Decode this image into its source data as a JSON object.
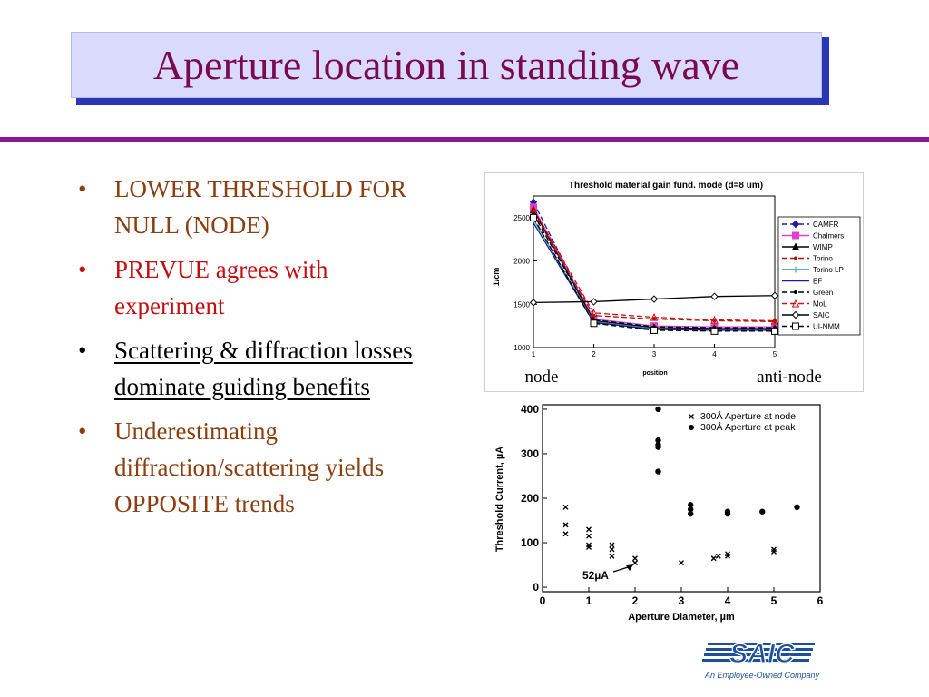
{
  "slide": {
    "title": "Aperture location in standing wave",
    "bullets": [
      {
        "text": "LOWER THRESHOLD FOR NULL (NODE)",
        "color": "#8b3f10"
      },
      {
        "text": "PREVUE agrees with experiment",
        "color": "#c40f12"
      },
      {
        "text": "Scattering & diffraction losses dominate guiding benefits",
        "color": "#000000",
        "underline": true
      },
      {
        "text": "Underestimating diffraction/scattering yields OPPOSITE trends",
        "color": "#8b3f10"
      }
    ],
    "bullet_glyph": "•",
    "logo": {
      "name": "SAIC",
      "tagline": "An Employee-Owned Company",
      "color": "#1d4f9f"
    }
  },
  "chart_data": [
    {
      "type": "line",
      "title": "Threshold material gain fund. mode (d=8 um)",
      "xlabel": "position",
      "ylabel": "1/cm",
      "xlim": [
        1,
        5
      ],
      "ylim": [
        1000,
        2750
      ],
      "xticks": [
        1,
        2,
        3,
        4,
        5
      ],
      "yticks": [
        1000,
        1500,
        2000,
        2500
      ],
      "x": [
        1,
        2,
        3,
        4,
        5
      ],
      "annotations": [
        "node",
        "anti-node"
      ],
      "legend_position": "right",
      "series": [
        {
          "name": "CAMFR",
          "values": [
            2680,
            1310,
            1230,
            1220,
            1220
          ],
          "color": "#1a1aa6",
          "dash": "6,3",
          "marker": "diamond-filled"
        },
        {
          "name": "Chalmers",
          "values": [
            2620,
            1330,
            1250,
            1240,
            1240
          ],
          "color": "#e040d0",
          "dash": "",
          "marker": "square-filled"
        },
        {
          "name": "WIMP",
          "values": [
            2590,
            1310,
            1230,
            1220,
            1220
          ],
          "color": "#000000",
          "dash": "",
          "marker": "triangle-filled"
        },
        {
          "name": "Torino",
          "values": [
            2560,
            1370,
            1330,
            1310,
            1300
          ],
          "color": "#b01010",
          "dash": "6,3",
          "marker": "dot"
        },
        {
          "name": "Torino LP",
          "values": [
            2480,
            1300,
            1220,
            1210,
            1210
          ],
          "color": "#2a9aa8",
          "dash": "",
          "marker": "plus"
        },
        {
          "name": "EF",
          "values": [
            2440,
            1290,
            1210,
            1200,
            1200
          ],
          "color": "#1a1aa6",
          "dash": "",
          "marker": "none"
        },
        {
          "name": "Green",
          "values": [
            2540,
            1320,
            1240,
            1230,
            1230
          ],
          "color": "#000000",
          "dash": "6,3",
          "marker": "dot"
        },
        {
          "name": "MoL",
          "values": [
            2600,
            1400,
            1350,
            1320,
            1310
          ],
          "color": "#d01010",
          "dash": "6,3",
          "marker": "triangle-open"
        },
        {
          "name": "SAIC",
          "values": [
            1520,
            1530,
            1560,
            1590,
            1600
          ],
          "color": "#000000",
          "dash": "",
          "marker": "diamond-open"
        },
        {
          "name": "UI-NMM",
          "values": [
            2500,
            1280,
            1200,
            1190,
            1190
          ],
          "color": "#000000",
          "dash": "6,3",
          "marker": "square-open"
        }
      ]
    },
    {
      "type": "scatter",
      "xlabel": "Aperture Diameter, µm",
      "ylabel": "Threshold Current, µA",
      "xlim": [
        0,
        6
      ],
      "ylim": [
        -10,
        410
      ],
      "xticks": [
        0,
        1,
        2,
        3,
        4,
        5,
        6
      ],
      "yticks": [
        0,
        100,
        200,
        300,
        400
      ],
      "annotation": "52µA",
      "legend_position": "top-right",
      "series": [
        {
          "name": "300Å Aperture at node",
          "marker": "x",
          "points": [
            [
              0.5,
              180
            ],
            [
              0.5,
              140
            ],
            [
              0.5,
              120
            ],
            [
              1.0,
              130
            ],
            [
              1.0,
              115
            ],
            [
              1.0,
              95
            ],
            [
              1.0,
              90
            ],
            [
              1.5,
              95
            ],
            [
              1.5,
              85
            ],
            [
              1.5,
              70
            ],
            [
              2.0,
              65
            ],
            [
              2.0,
              55
            ],
            [
              3.0,
              55
            ],
            [
              3.7,
              65
            ],
            [
              3.8,
              70
            ],
            [
              4.0,
              75
            ],
            [
              4.0,
              70
            ],
            [
              5.0,
              85
            ],
            [
              5.0,
              80
            ]
          ]
        },
        {
          "name": "300Å Aperture at peak",
          "marker": "dot",
          "points": [
            [
              2.5,
              400
            ],
            [
              2.5,
              330
            ],
            [
              2.5,
              320
            ],
            [
              2.5,
              315
            ],
            [
              2.5,
              260
            ],
            [
              3.2,
              185
            ],
            [
              3.2,
              175
            ],
            [
              3.2,
              165
            ],
            [
              4.0,
              170
            ],
            [
              4.0,
              165
            ],
            [
              4.75,
              170
            ],
            [
              5.5,
              180
            ]
          ]
        }
      ]
    }
  ]
}
